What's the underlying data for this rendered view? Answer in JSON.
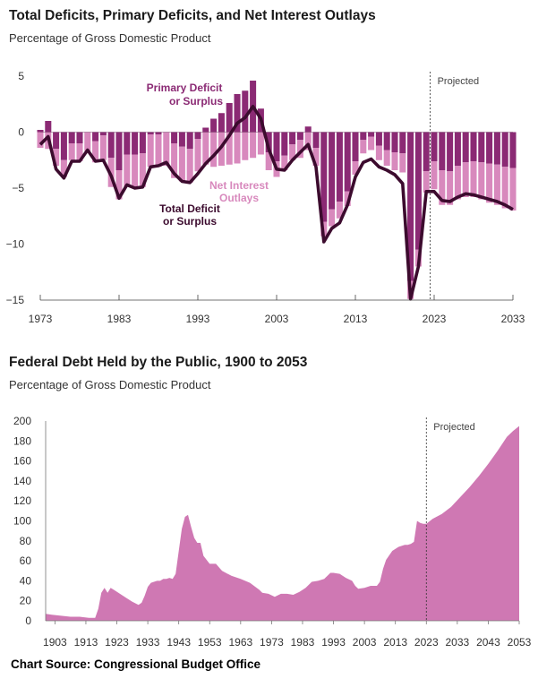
{
  "chart_data": [
    {
      "type": "bar",
      "title": "Total Deficits, Primary Deficits, and Net Interest Outlays",
      "subtitle": "Percentage of Gross Domestic Product",
      "x_tick_labels": [
        "1973",
        "1983",
        "1993",
        "2003",
        "2013",
        "2023",
        "2033"
      ],
      "y_tick_labels": [
        "5",
        "0",
        "−5",
        "−10",
        "−15"
      ],
      "ylim": [
        -15,
        5
      ],
      "projected_label": "Projected",
      "projected_start_year": 2023,
      "colors": {
        "primary": "#8b2a74",
        "interest": "#d889bd",
        "total": "#3c0b2e"
      },
      "annotations": {
        "primary": [
          "Primary Deficit",
          "or Surplus"
        ],
        "interest": [
          "Net Interest",
          "Outlays"
        ],
        "total": [
          "Total Deficit",
          "or Surplus"
        ]
      },
      "years": [
        1973,
        1974,
        1975,
        1976,
        1977,
        1978,
        1979,
        1980,
        1981,
        1982,
        1983,
        1984,
        1985,
        1986,
        1987,
        1988,
        1989,
        1990,
        1991,
        1992,
        1993,
        1994,
        1995,
        1996,
        1997,
        1998,
        1999,
        2000,
        2001,
        2002,
        2003,
        2004,
        2005,
        2006,
        2007,
        2008,
        2009,
        2010,
        2011,
        2012,
        2013,
        2014,
        2015,
        2016,
        2017,
        2018,
        2019,
        2020,
        2021,
        2022,
        2023,
        2024,
        2025,
        2026,
        2027,
        2028,
        2029,
        2030,
        2031,
        2032,
        2033
      ],
      "series": [
        {
          "name": "Primary Deficit or Surplus",
          "values": [
            0.2,
            1.0,
            -1.5,
            -2.5,
            -1.0,
            -1.0,
            0.0,
            -0.8,
            -0.3,
            -2.3,
            -3.4,
            -2.0,
            -2.0,
            -1.9,
            -0.2,
            -0.2,
            0.0,
            -1.0,
            -1.3,
            -1.5,
            -0.6,
            0.4,
            1.2,
            1.7,
            2.6,
            3.4,
            3.7,
            4.6,
            2.1,
            -1.8,
            -2.6,
            -2.1,
            -1.1,
            -0.7,
            0.5,
            -1.4,
            -8.0,
            -6.9,
            -6.2,
            -5.3,
            -2.6,
            -0.7,
            -0.4,
            -1.2,
            -1.6,
            -1.8,
            -1.9,
            -13.3,
            -10.5,
            -3.5,
            -2.6,
            -3.4,
            -3.5,
            -3.0,
            -2.7,
            -2.6,
            -2.7,
            -2.8,
            -2.9,
            -3.1,
            -3.2
          ]
        },
        {
          "name": "Net Interest Outlays",
          "values": [
            1.4,
            1.5,
            1.5,
            1.5,
            1.5,
            1.6,
            1.7,
            1.9,
            2.2,
            2.6,
            2.6,
            2.9,
            3.0,
            3.0,
            2.9,
            2.9,
            3.0,
            3.1,
            3.1,
            3.0,
            2.9,
            2.9,
            3.1,
            3.0,
            2.9,
            2.8,
            2.5,
            2.3,
            2.0,
            1.6,
            1.4,
            1.3,
            1.4,
            1.6,
            1.6,
            1.6,
            1.3,
            1.5,
            1.5,
            1.3,
            1.2,
            1.2,
            1.2,
            1.3,
            1.4,
            1.6,
            1.7,
            1.6,
            1.5,
            1.9,
            2.5,
            3.1,
            3.0,
            3.0,
            3.1,
            3.2,
            3.3,
            3.5,
            3.6,
            3.7,
            3.8
          ]
        },
        {
          "name": "Total Deficit or Surplus",
          "values": [
            -1.1,
            -0.4,
            -3.3,
            -4.1,
            -2.6,
            -2.6,
            -1.6,
            -2.6,
            -2.5,
            -3.9,
            -5.9,
            -4.7,
            -5.0,
            -4.9,
            -3.1,
            -3.0,
            -2.7,
            -3.7,
            -4.4,
            -4.5,
            -3.7,
            -2.8,
            -2.1,
            -1.3,
            -0.3,
            0.8,
            1.3,
            2.3,
            1.2,
            -1.5,
            -3.3,
            -3.4,
            -2.5,
            -1.8,
            -1.1,
            -3.1,
            -9.8,
            -8.6,
            -8.1,
            -6.5,
            -4.0,
            -2.7,
            -2.4,
            -3.1,
            -3.4,
            -3.8,
            -4.6,
            -14.9,
            -12.0,
            -5.3,
            -5.3,
            -6.1,
            -6.2,
            -5.8,
            -5.5,
            -5.6,
            -5.8,
            -6.0,
            -6.2,
            -6.5,
            -6.9
          ]
        }
      ]
    },
    {
      "type": "area",
      "title": "Federal Debt Held by the Public, 1900 to 2053",
      "subtitle": "Percentage of Gross Domestic Product",
      "x_tick_labels": [
        "1903",
        "1913",
        "1923",
        "1933",
        "1943",
        "1953",
        "1963",
        "1973",
        "1983",
        "1993",
        "2003",
        "2013",
        "2023",
        "2033",
        "2043",
        "2053"
      ],
      "y_tick_labels": [
        "200",
        "180",
        "160",
        "140",
        "120",
        "100",
        "80",
        "60",
        "40",
        "20",
        "0"
      ],
      "ylim": [
        0,
        200
      ],
      "xlim": [
        1900,
        2053
      ],
      "projected_label": "Projected",
      "projected_start_year": 2023,
      "color": "#cf78b3",
      "x": [
        1900,
        1902,
        1905,
        1908,
        1911,
        1914,
        1916,
        1917,
        1918,
        1919,
        1920,
        1921,
        1922,
        1924,
        1926,
        1928,
        1930,
        1931,
        1932,
        1933,
        1934,
        1935,
        1936,
        1937,
        1938,
        1939,
        1940,
        1941,
        1942,
        1943,
        1944,
        1945,
        1946,
        1947,
        1948,
        1949,
        1950,
        1951,
        1952,
        1953,
        1955,
        1957,
        1960,
        1963,
        1966,
        1969,
        1970,
        1972,
        1974,
        1976,
        1978,
        1980,
        1982,
        1984,
        1986,
        1988,
        1990,
        1992,
        1993,
        1995,
        1997,
        1999,
        2000,
        2001,
        2003,
        2005,
        2007,
        2008,
        2009,
        2010,
        2012,
        2014,
        2016,
        2017,
        2018,
        2019,
        2020,
        2021,
        2022,
        2023,
        2025,
        2028,
        2031,
        2034,
        2037,
        2040,
        2043,
        2046,
        2049,
        2051,
        2053
      ],
      "values": [
        7,
        6,
        5,
        4,
        4,
        3,
        3,
        12,
        28,
        33,
        28,
        33,
        31,
        27,
        23,
        19,
        16,
        18,
        25,
        34,
        38,
        39,
        40,
        40,
        42,
        42,
        43,
        42,
        47,
        70,
        92,
        104,
        106,
        94,
        83,
        78,
        78,
        65,
        61,
        57,
        57,
        50,
        45,
        42,
        38,
        31,
        28,
        27,
        24,
        27,
        27,
        26,
        29,
        33,
        39,
        40,
        42,
        48,
        48,
        47,
        43,
        40,
        35,
        32,
        33,
        35,
        35,
        39,
        52,
        61,
        70,
        74,
        76,
        76,
        77,
        79,
        100,
        98,
        97,
        97,
        102,
        107,
        114,
        124,
        134,
        145,
        157,
        170,
        184,
        190,
        195
      ]
    }
  ],
  "source": "Chart Source: Congressional Budget Office"
}
